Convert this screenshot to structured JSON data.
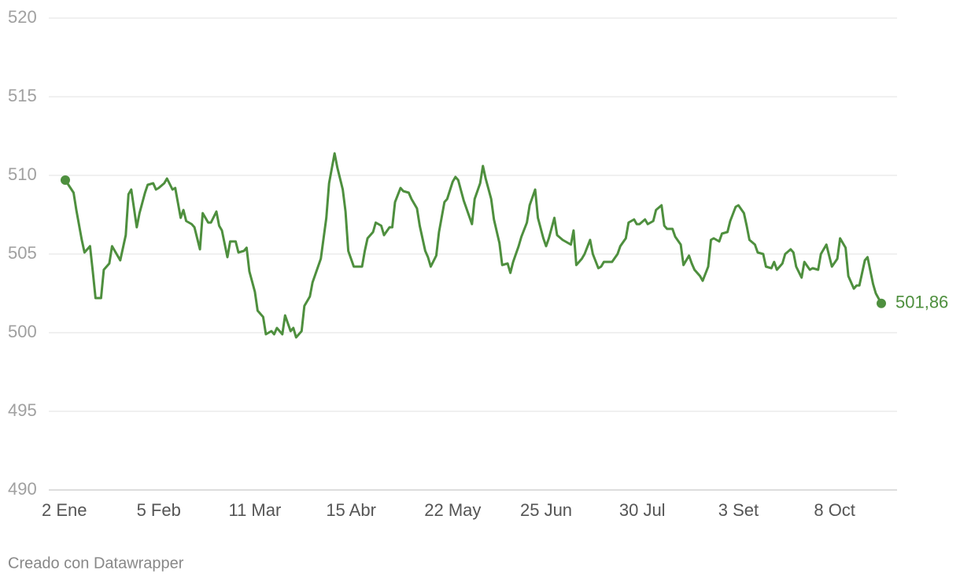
{
  "chart_data": {
    "type": "line",
    "credit": "Creado con Datawrapper",
    "color": "#4e8f3e",
    "grid": true,
    "ylim": [
      490,
      520
    ],
    "yticks": [
      490,
      495,
      500,
      505,
      510,
      515,
      520
    ],
    "xlim": [
      2,
      299
    ],
    "xticks": [
      {
        "value": 2,
        "label": "2 Ene"
      },
      {
        "value": 36,
        "label": "5 Feb"
      },
      {
        "value": 71,
        "label": "11 Mar"
      },
      {
        "value": 106,
        "label": "15 Abr"
      },
      {
        "value": 143,
        "label": "22 May"
      },
      {
        "value": 177,
        "label": "25 Jun"
      },
      {
        "value": 212,
        "label": "30 Jul"
      },
      {
        "value": 247,
        "label": "3 Set"
      },
      {
        "value": 282,
        "label": "8 Oct"
      }
    ],
    "x": [
      2,
      5,
      6,
      8,
      9,
      11,
      12,
      13,
      15,
      16,
      18,
      19,
      22,
      24,
      25,
      26,
      28,
      29,
      31,
      32,
      34,
      35,
      36,
      38,
      39,
      41,
      42,
      44,
      45,
      46,
      48,
      49,
      51,
      52,
      54,
      55,
      57,
      58,
      59,
      61,
      62,
      64,
      65,
      67,
      68,
      69,
      71,
      72,
      74,
      75,
      77,
      78,
      79,
      81,
      82,
      84,
      85,
      86,
      88,
      89,
      91,
      92,
      94,
      95,
      97,
      98,
      100,
      101,
      103,
      104,
      105,
      107,
      108,
      110,
      111,
      112,
      114,
      115,
      117,
      118,
      120,
      121,
      122,
      124,
      125,
      127,
      128,
      130,
      131,
      133,
      134,
      135,
      137,
      138,
      140,
      141,
      143,
      144,
      145,
      147,
      148,
      150,
      151,
      153,
      154,
      155,
      157,
      158,
      160,
      161,
      163,
      164,
      165,
      167,
      168,
      170,
      171,
      173,
      174,
      176,
      177,
      178,
      180,
      181,
      183,
      184,
      186,
      187,
      188,
      190,
      191,
      193,
      194,
      196,
      197,
      198,
      200,
      201,
      203,
      204,
      206,
      207,
      209,
      210,
      211,
      213,
      214,
      216,
      217,
      219,
      220,
      221,
      223,
      224,
      226,
      227,
      229,
      230,
      231,
      233,
      234,
      236,
      237,
      238,
      240,
      241,
      243,
      244,
      246,
      247,
      249,
      250,
      251,
      253,
      254,
      256,
      257,
      259,
      260,
      261,
      263,
      264,
      266,
      267,
      268,
      270,
      271,
      273,
      274,
      276,
      277,
      279,
      280,
      281,
      283,
      284,
      286,
      287,
      289,
      290,
      291,
      293,
      294,
      296,
      297,
      299
    ],
    "values": [
      509.7,
      508.9,
      507.8,
      505.9,
      505.1,
      505.5,
      503.9,
      502.2,
      502.2,
      504.0,
      504.4,
      505.5,
      504.6,
      506.2,
      508.8,
      509.1,
      506.7,
      507.6,
      508.9,
      509.4,
      509.5,
      509.1,
      509.2,
      509.5,
      509.8,
      509.1,
      509.2,
      507.3,
      507.8,
      507.1,
      506.9,
      506.7,
      505.3,
      507.6,
      507.0,
      507.0,
      507.7,
      506.8,
      506.5,
      504.8,
      505.8,
      505.8,
      505.1,
      505.2,
      505.4,
      503.9,
      502.6,
      501.4,
      501.0,
      499.9,
      500.1,
      499.9,
      500.3,
      499.9,
      501.1,
      500.1,
      500.3,
      499.7,
      500.1,
      501.7,
      502.3,
      503.2,
      504.2,
      504.7,
      507.3,
      509.5,
      511.4,
      510.5,
      509.1,
      507.7,
      505.2,
      504.2,
      504.2,
      504.2,
      505.2,
      506.0,
      506.4,
      507.0,
      506.8,
      506.2,
      506.7,
      506.7,
      508.3,
      509.2,
      509.0,
      508.9,
      508.5,
      507.9,
      506.8,
      505.2,
      504.8,
      504.2,
      504.9,
      506.4,
      508.3,
      508.5,
      509.6,
      509.9,
      509.7,
      508.4,
      507.9,
      506.9,
      508.5,
      509.5,
      510.6,
      509.8,
      508.5,
      507.2,
      505.7,
      504.3,
      504.4,
      503.8,
      504.5,
      505.5,
      506.1,
      507.0,
      508.1,
      509.1,
      507.3,
      506.0,
      505.5,
      506.0,
      507.3,
      506.2,
      505.9,
      505.8,
      505.6,
      506.5,
      504.3,
      504.7,
      505.0,
      505.9,
      505.0,
      504.1,
      504.2,
      504.5,
      504.5,
      504.5,
      505.0,
      505.5,
      506.0,
      507.0,
      507.2,
      506.9,
      506.9,
      507.2,
      506.9,
      507.1,
      507.8,
      508.1,
      506.8,
      506.6,
      506.6,
      506.1,
      505.6,
      504.3,
      504.9,
      504.4,
      504.0,
      503.6,
      503.3,
      504.2,
      505.9,
      506.0,
      505.8,
      506.3,
      506.4,
      507.1,
      508.0,
      508.1,
      507.6,
      506.8,
      505.9,
      505.6,
      505.1,
      505.0,
      504.2,
      504.1,
      504.5,
      504.0,
      504.4,
      505.0,
      505.3,
      505.1,
      504.2,
      503.5,
      504.5,
      504.0,
      504.1,
      504.0,
      505.0,
      505.6,
      504.9,
      504.2,
      504.7,
      506.0,
      505.4,
      503.6,
      502.8,
      503.0,
      503.0,
      504.6,
      504.8,
      503.1,
      502.5,
      501.86
    ],
    "value_labels": [
      null,
      null,
      null,
      null,
      null,
      null,
      null,
      null,
      null,
      null,
      null,
      null,
      null,
      null,
      null,
      null,
      null,
      null,
      null,
      null,
      null,
      null,
      null,
      null,
      null,
      null,
      null,
      null,
      null,
      null,
      null,
      null,
      null,
      null,
      null,
      null,
      null,
      null,
      null,
      null,
      null,
      null,
      null,
      null,
      null,
      null,
      null,
      null,
      null,
      null,
      null,
      null,
      null,
      null,
      null,
      null,
      null,
      null,
      null,
      null,
      null,
      null,
      null,
      null,
      null,
      null,
      null,
      null,
      null,
      null,
      null,
      null,
      null,
      null,
      null,
      null,
      null,
      null,
      null,
      null,
      null,
      null,
      null,
      null,
      null,
      null,
      null,
      null,
      null,
      null,
      null,
      null,
      null,
      null,
      null,
      null,
      null,
      null,
      null,
      null,
      null,
      null,
      null,
      null,
      null,
      null,
      null,
      null,
      null,
      null,
      null,
      null,
      null,
      null,
      null,
      null,
      null,
      null,
      null,
      null,
      null,
      null,
      null,
      null,
      null,
      null,
      null,
      null,
      null,
      null,
      null,
      null,
      null,
      null,
      null,
      null,
      null,
      null,
      null,
      null,
      null,
      null,
      null,
      null,
      null,
      null,
      null,
      null,
      null,
      null,
      null,
      null,
      null,
      null,
      null,
      null,
      null,
      null,
      null,
      null,
      null,
      null,
      null,
      null,
      null,
      null,
      null,
      null,
      null,
      null,
      null,
      null,
      null,
      null,
      null,
      null,
      null,
      null,
      null,
      null,
      null,
      null,
      null,
      null,
      null,
      null,
      null,
      null,
      null,
      null,
      null,
      null,
      null,
      null,
      null,
      null,
      null,
      null,
      null,
      null,
      null,
      null,
      null,
      null,
      null,
      "501,86"
    ]
  }
}
